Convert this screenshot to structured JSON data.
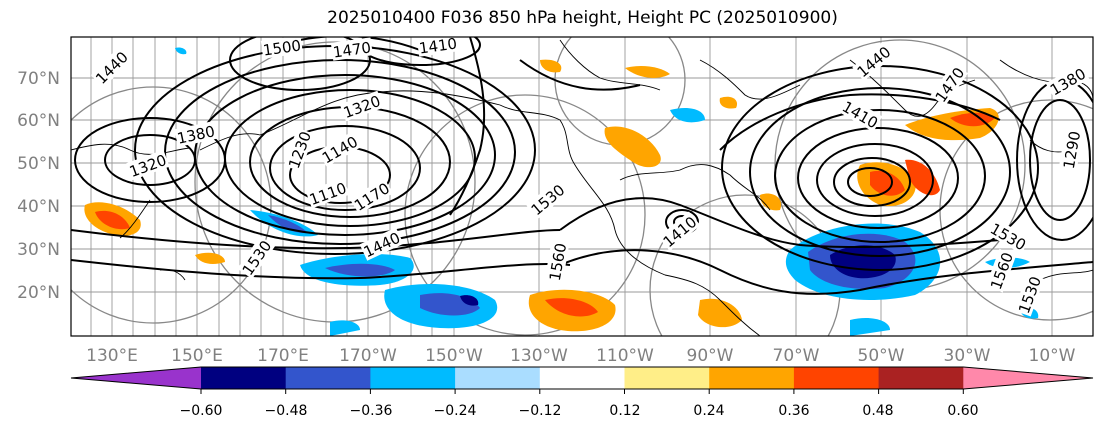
{
  "title": "2025010400 F036 850 hPa height, Height PC (2025010900)",
  "lat_ticks": [
    "70°N",
    "60°N",
    "50°N",
    "40°N",
    "30°N",
    "20°N"
  ],
  "lon_ticks": [
    "130°E",
    "150°E",
    "170°E",
    "170°W",
    "150°W",
    "130°W",
    "110°W",
    "90°W",
    "70°W",
    "50°W",
    "30°W",
    "10°W"
  ],
  "colorbar": {
    "tick_labels": [
      "−0.60",
      "−0.48",
      "−0.36",
      "−0.24",
      "−0.12",
      "0.12",
      "0.24",
      "0.36",
      "0.48",
      "0.60"
    ],
    "colors": [
      "#9933cc",
      "#000080",
      "#3355cc",
      "#00bbff",
      "#aaddff",
      "#ffffff",
      "#ffee88",
      "#ffa500",
      "#ff4400",
      "#aa2222",
      "#ff88aa"
    ]
  },
  "contour_labels": [
    "1440",
    "1500",
    "1470",
    "1410",
    "1380",
    "1320",
    "1320",
    "1140",
    "1110",
    "1170",
    "1230",
    "1530",
    "1410",
    "1440",
    "1530",
    "1560",
    "1410",
    "1470",
    "1380",
    "1290",
    "1530",
    "1560",
    "1530",
    "1440"
  ],
  "colors": {
    "shade_pos_light": "#ffa500",
    "shade_pos_dark": "#ff4400",
    "shade_neg_light": "#00bbff",
    "shade_neg_dark": "#3355cc"
  }
}
